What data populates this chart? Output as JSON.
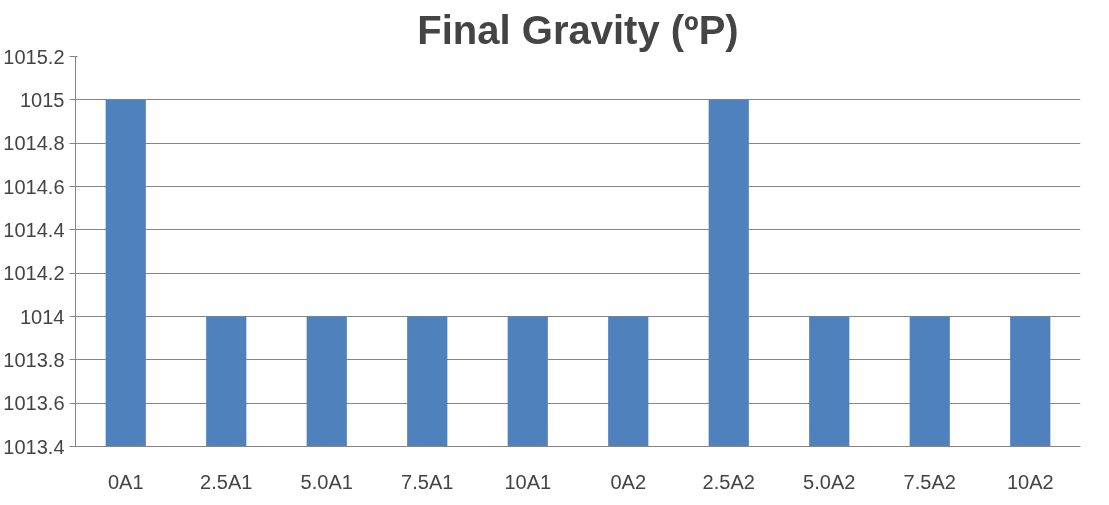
{
  "chart_data": {
    "type": "bar",
    "title": "Final Gravity (ºP)",
    "categories": [
      "0A1",
      "2.5A1",
      "5.0A1",
      "7.5A1",
      "10A1",
      "0A2",
      "2.5A2",
      "5.0A2",
      "7.5A2",
      "10A2"
    ],
    "values": [
      1015,
      1014,
      1014,
      1014,
      1014,
      1014,
      1015,
      1014,
      1014,
      1014
    ],
    "color": "#4f81bd",
    "ylim": [
      1013.4,
      1015.2
    ],
    "yticks": [
      1013.4,
      1013.6,
      1013.8,
      1014,
      1014.2,
      1014.4,
      1014.6,
      1014.8,
      1015,
      1015.2
    ],
    "grid": "y"
  }
}
